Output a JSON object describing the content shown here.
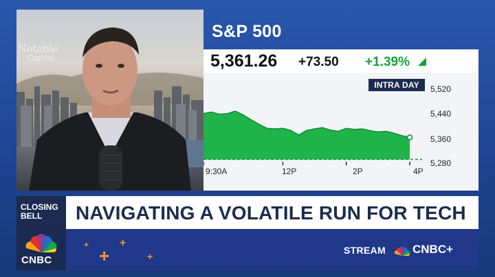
{
  "video": {
    "overlay_logo": "Notable",
    "overlay_logo_sub": "Capital"
  },
  "quote": {
    "index_name": "S&P 500",
    "price": "5,361.26",
    "change": "+73.50",
    "change_pct": "+1.39%",
    "direction_icon": "up-triangle-icon"
  },
  "chart_data": {
    "type": "area",
    "badge": "INTRA DAY",
    "x_ticks": [
      "9:30A",
      "12P",
      "2P",
      "4P"
    ],
    "y_ticks": [
      "5,520",
      "5,440",
      "5,360",
      "5,280"
    ],
    "ylim": [
      5280,
      5520
    ],
    "x": [
      "9:30",
      "9:45",
      "10:00",
      "10:15",
      "10:30",
      "10:45",
      "11:00",
      "11:15",
      "11:30",
      "11:45",
      "12:00",
      "12:15",
      "12:30",
      "12:45",
      "13:00",
      "13:15",
      "13:30",
      "13:45",
      "14:00",
      "14:15",
      "14:30",
      "14:45",
      "15:00",
      "15:15",
      "15:30",
      "15:45",
      "16:00"
    ],
    "values": [
      5440,
      5445,
      5438,
      5440,
      5448,
      5436,
      5420,
      5405,
      5392,
      5390,
      5392,
      5385,
      5370,
      5385,
      5390,
      5394,
      5386,
      5382,
      5392,
      5388,
      5390,
      5384,
      5380,
      5382,
      5376,
      5368,
      5362
    ],
    "reference_line": 5290,
    "colors": {
      "fill": "#1fb34a",
      "line": "#0f8a2f",
      "reference": "#1a8f3c"
    }
  },
  "lower_third": {
    "tag": "CLOSING\nBELL",
    "tag_line1": "CLOSING",
    "tag_line2": "BELL",
    "headline": "NAVIGATING A VOLATILE RUN FOR TECH"
  },
  "footer": {
    "network": "CNBC",
    "stream_label": "STREAM",
    "stream_brand": "CNBC+"
  }
}
